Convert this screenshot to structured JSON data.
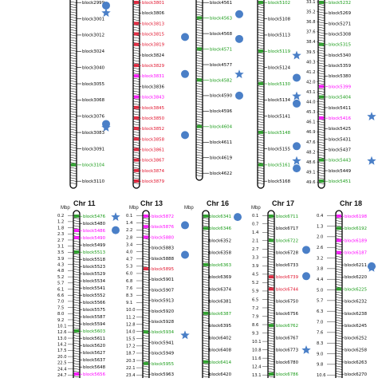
{
  "unit_label": "Mbp",
  "colors": {
    "black": "#000000",
    "red": "#e0102a",
    "magenta": "#ff00ff",
    "green": "#179a16",
    "dot": "#4a7fc7",
    "star": "#4a7fc7"
  },
  "top_panel": {
    "chromosomes": [
      {
        "id": "top-a",
        "labels": [
          {
            "text": "block2999",
            "color": "black"
          },
          {
            "text": "block3001",
            "color": "black"
          },
          {
            "text": "block3012",
            "color": "black"
          },
          {
            "text": "block3024",
            "color": "black"
          },
          {
            "text": "block3040",
            "color": "black"
          },
          {
            "text": "block3055",
            "color": "black"
          },
          {
            "text": "block3068",
            "color": "black"
          },
          {
            "text": "block3076",
            "color": "black"
          },
          {
            "text": "block3083",
            "color": "black"
          },
          {
            "text": "block3091",
            "color": "black"
          },
          {
            "text": "block3104",
            "color": "green"
          },
          {
            "text": "block3110",
            "color": "black"
          }
        ],
        "symbols": [
          {
            "type": "dot",
            "pos": 0.03
          },
          {
            "type": "star",
            "pos": 0.07
          },
          {
            "type": "dot",
            "pos": 0.67
          },
          {
            "type": "star",
            "pos": 0.69
          }
        ]
      },
      {
        "id": "top-b",
        "labels": [
          {
            "text": "block3801",
            "color": "red"
          },
          {
            "text": "block3806",
            "color": "black"
          },
          {
            "text": "block3813",
            "color": "red"
          },
          {
            "text": "block3815",
            "color": "red"
          },
          {
            "text": "block3819",
            "color": "red"
          },
          {
            "text": "block3824",
            "color": "black"
          },
          {
            "text": "block3829",
            "color": "red"
          },
          {
            "text": "block3831",
            "color": "magenta"
          },
          {
            "text": "block3836",
            "color": "black"
          },
          {
            "text": "block3843",
            "color": "magenta"
          },
          {
            "text": "block3845",
            "color": "red"
          },
          {
            "text": "block3850",
            "color": "red"
          },
          {
            "text": "block3852",
            "color": "red"
          },
          {
            "text": "block3858",
            "color": "red"
          },
          {
            "text": "block3861",
            "color": "red"
          },
          {
            "text": "block3867",
            "color": "red"
          },
          {
            "text": "block3874",
            "color": "red"
          },
          {
            "text": "block3879",
            "color": "red"
          }
        ],
        "symbols": [
          {
            "type": "dot",
            "pos": 0.2
          },
          {
            "type": "dot",
            "pos": 0.4
          },
          {
            "type": "dot",
            "pos": 0.73
          }
        ]
      },
      {
        "id": "top-c",
        "labels": [
          {
            "text": "block4561",
            "color": "black"
          },
          {
            "text": "block4563",
            "color": "green"
          },
          {
            "text": "block4568",
            "color": "black"
          },
          {
            "text": "block4571",
            "color": "green"
          },
          {
            "text": "block4577",
            "color": "black"
          },
          {
            "text": "block4582",
            "color": "green"
          },
          {
            "text": "block4590",
            "color": "black"
          },
          {
            "text": "block4596",
            "color": "black"
          },
          {
            "text": "block4604",
            "color": "green"
          },
          {
            "text": "block4611",
            "color": "black"
          },
          {
            "text": "block4619",
            "color": "black"
          },
          {
            "text": "block4622",
            "color": "black"
          }
        ],
        "symbols": [
          {
            "type": "dot",
            "pos": 0.08
          },
          {
            "type": "dot",
            "pos": 0.22
          },
          {
            "type": "star",
            "pos": 0.42
          },
          {
            "type": "dot",
            "pos": 0.54
          }
        ]
      },
      {
        "id": "top-d",
        "labels": [
          {
            "text": "block5102",
            "color": "green"
          },
          {
            "text": "block5108",
            "color": "black"
          },
          {
            "text": "block5113",
            "color": "black"
          },
          {
            "text": "block5119",
            "color": "green"
          },
          {
            "text": "block5124",
            "color": "black"
          },
          {
            "text": "block5130",
            "color": "green"
          },
          {
            "text": "block5134",
            "color": "black"
          },
          {
            "text": "block5141",
            "color": "black"
          },
          {
            "text": "block5148",
            "color": "green"
          },
          {
            "text": "block5155",
            "color": "black"
          },
          {
            "text": "block5161",
            "color": "green"
          },
          {
            "text": "block5168",
            "color": "black"
          }
        ],
        "symbols": [
          {
            "type": "star",
            "pos": 0.3
          },
          {
            "type": "dot",
            "pos": 0.42
          },
          {
            "type": "star",
            "pos": 0.52
          },
          {
            "type": "dot",
            "pos": 0.56
          },
          {
            "type": "dot",
            "pos": 0.79
          },
          {
            "type": "star",
            "pos": 0.87
          },
          {
            "type": "dot",
            "pos": 0.91
          }
        ]
      },
      {
        "id": "top-e",
        "labels": [
          {
            "text": "block5232",
            "color": "green"
          },
          {
            "text": "block5269",
            "color": "black"
          },
          {
            "text": "block5271",
            "color": "black"
          },
          {
            "text": "block5308",
            "color": "black"
          },
          {
            "text": "block5315",
            "color": "green"
          },
          {
            "text": "block5340",
            "color": "black"
          },
          {
            "text": "block5359",
            "color": "black"
          },
          {
            "text": "block5380",
            "color": "black"
          },
          {
            "text": "block5399",
            "color": "magenta"
          },
          {
            "text": "block5404",
            "color": "green"
          },
          {
            "text": "block5411",
            "color": "black"
          },
          {
            "text": "block5416",
            "color": "magenta"
          },
          {
            "text": "block5425",
            "color": "black"
          },
          {
            "text": "block5431",
            "color": "black"
          },
          {
            "text": "block5437",
            "color": "black"
          },
          {
            "text": "block5443",
            "color": "green"
          },
          {
            "text": "block5449",
            "color": "black"
          },
          {
            "text": "block5451",
            "color": "green"
          }
        ],
        "ticks": [
          "33.1",
          "35.2",
          "36.8",
          "37.6",
          "38.4",
          "39.5",
          "40.3",
          "41.2",
          "42.0",
          "43.1",
          "44.0",
          "45.3",
          "46.1",
          "46.9",
          "47.6",
          "48.2",
          "48.6",
          "49.1",
          "49.6"
        ],
        "symbols": [
          {
            "type": "star",
            "pos": 0.63
          },
          {
            "type": "star",
            "pos": 0.87
          }
        ]
      }
    ]
  },
  "bottom_panel": {
    "chromosomes": [
      {
        "id": "chr-11",
        "title": "Chr 11",
        "ticks": [
          "0.2",
          "1.2",
          "1.8",
          "2.3",
          "2.7",
          "3.1",
          "3.5",
          "3.9",
          "4.3",
          "4.8",
          "5.2",
          "5.7",
          "6.1",
          "6.6",
          "7.0",
          "7.5",
          "8.0",
          "9.2",
          "10.1",
          "12.6",
          "13.0",
          "14.2",
          "17.5",
          "20.0",
          "22.5",
          "24.4",
          "24.7"
        ],
        "labels": [
          {
            "text": "block5476",
            "color": "green"
          },
          {
            "text": "block5480",
            "color": "black"
          },
          {
            "text": "block5486",
            "color": "magenta"
          },
          {
            "text": "block5490",
            "color": "magenta"
          },
          {
            "text": "block5499",
            "color": "black"
          },
          {
            "text": "block5513",
            "color": "green"
          },
          {
            "text": "block5518",
            "color": "black"
          },
          {
            "text": "block5523",
            "color": "black"
          },
          {
            "text": "block5529",
            "color": "black"
          },
          {
            "text": "block5534",
            "color": "black"
          },
          {
            "text": "block5541",
            "color": "black"
          },
          {
            "text": "block5552",
            "color": "black"
          },
          {
            "text": "block5566",
            "color": "black"
          },
          {
            "text": "block5575",
            "color": "black"
          },
          {
            "text": "block5587",
            "color": "black"
          },
          {
            "text": "block5594",
            "color": "black"
          },
          {
            "text": "block5603",
            "color": "green"
          },
          {
            "text": "block5611",
            "color": "black"
          },
          {
            "text": "block5620",
            "color": "black"
          },
          {
            "text": "block5627",
            "color": "black"
          },
          {
            "text": "block5637",
            "color": "black"
          },
          {
            "text": "block5648",
            "color": "black"
          },
          {
            "text": "block5656",
            "color": "magenta"
          }
        ],
        "symbols": [
          {
            "type": "star",
            "pos": 0.02
          },
          {
            "type": "dot",
            "pos": 0.1
          }
        ]
      },
      {
        "id": "chr-13",
        "title": "Chr 13",
        "ticks": [
          "0.1",
          "1.4",
          "2.2",
          "2.8",
          "3.4",
          "4.0",
          "4.7",
          "5.3",
          "6.0",
          "6.8",
          "7.6",
          "8.3",
          "9.1",
          "10.0",
          "11.2",
          "12.8",
          "14.0",
          "15.5",
          "17.2",
          "18.7",
          "20.3",
          "22.1",
          "23.4"
        ],
        "labels": [
          {
            "text": "block5872",
            "color": "magenta"
          },
          {
            "text": "block5876",
            "color": "magenta"
          },
          {
            "text": "block5880",
            "color": "magenta"
          },
          {
            "text": "block5883",
            "color": "black"
          },
          {
            "text": "block5888",
            "color": "black"
          },
          {
            "text": "block5895",
            "color": "red"
          },
          {
            "text": "block5901",
            "color": "black"
          },
          {
            "text": "block5907",
            "color": "black"
          },
          {
            "text": "block5913",
            "color": "black"
          },
          {
            "text": "block5920",
            "color": "black"
          },
          {
            "text": "block5928",
            "color": "black"
          },
          {
            "text": "block5934",
            "color": "green"
          },
          {
            "text": "block5941",
            "color": "black"
          },
          {
            "text": "block5949",
            "color": "black"
          },
          {
            "text": "block5955",
            "color": "green"
          },
          {
            "text": "block5963",
            "color": "black"
          }
        ],
        "symbols": [
          {
            "type": "dot",
            "pos": 0.07
          },
          {
            "type": "dot",
            "pos": 0.25
          },
          {
            "type": "star",
            "pos": 0.74
          }
        ]
      },
      {
        "id": "chr-16",
        "title": "Chr 16",
        "ticks": [],
        "labels": [
          {
            "text": "block6341",
            "color": "green"
          },
          {
            "text": "block6346",
            "color": "green"
          },
          {
            "text": "block6352",
            "color": "black"
          },
          {
            "text": "block6358",
            "color": "black"
          },
          {
            "text": "block6363",
            "color": "green"
          },
          {
            "text": "block6369",
            "color": "black"
          },
          {
            "text": "block6374",
            "color": "black"
          },
          {
            "text": "block6381",
            "color": "black"
          },
          {
            "text": "block6387",
            "color": "green"
          },
          {
            "text": "block6395",
            "color": "black"
          },
          {
            "text": "block6402",
            "color": "black"
          },
          {
            "text": "block6408",
            "color": "black"
          },
          {
            "text": "block6414",
            "color": "green"
          },
          {
            "text": "block6420",
            "color": "black"
          }
        ],
        "symbols": [
          {
            "type": "dot",
            "pos": 0.02
          }
        ]
      },
      {
        "id": "chr-17",
        "title": "Chr 17",
        "ticks": [
          "0.1",
          "0.7",
          "1.4",
          "2.1",
          "2.7",
          "3.3",
          "3.9",
          "4.5",
          "5.2",
          "5.9",
          "6.5",
          "7.2",
          "7.9",
          "8.6",
          "9.3",
          "10.1",
          "10.8",
          "11.6",
          "12.4",
          "13.1"
        ],
        "labels": [
          {
            "text": "block6711",
            "color": "green"
          },
          {
            "text": "block6717",
            "color": "black"
          },
          {
            "text": "block6722",
            "color": "green"
          },
          {
            "text": "block6728",
            "color": "black"
          },
          {
            "text": "block6733",
            "color": "black"
          },
          {
            "text": "block6739",
            "color": "red"
          },
          {
            "text": "block6744",
            "color": "red"
          },
          {
            "text": "block6750",
            "color": "black"
          },
          {
            "text": "block6756",
            "color": "black"
          },
          {
            "text": "block6762",
            "color": "green"
          },
          {
            "text": "block6767",
            "color": "black"
          },
          {
            "text": "block6773",
            "color": "black"
          },
          {
            "text": "block6780",
            "color": "black"
          },
          {
            "text": "block6786",
            "color": "green"
          }
        ],
        "symbols": [
          {
            "type": "dot",
            "pos": 0.22
          },
          {
            "type": "dot",
            "pos": 0.38
          },
          {
            "type": "star",
            "pos": 0.83
          }
        ]
      },
      {
        "id": "chr-18",
        "title": "Chr 18",
        "ticks": [
          "0.4",
          "1.3",
          "2.0",
          "2.6",
          "3.2",
          "3.8",
          "4.4",
          "5.0",
          "5.7",
          "6.3",
          "7.0",
          "7.6",
          "8.3",
          "9.0",
          "9.8",
          "10.6"
        ],
        "labels": [
          {
            "text": "block6198",
            "color": "magenta"
          },
          {
            "text": "block6192",
            "color": "green"
          },
          {
            "text": "block6189",
            "color": "magenta"
          },
          {
            "text": "block6187",
            "color": "magenta"
          },
          {
            "text": "block6211",
            "color": "black"
          },
          {
            "text": "block6220",
            "color": "black"
          },
          {
            "text": "block6225",
            "color": "green"
          },
          {
            "text": "block6232",
            "color": "black"
          },
          {
            "text": "block6238",
            "color": "black"
          },
          {
            "text": "block6245",
            "color": "black"
          },
          {
            "text": "block6252",
            "color": "black"
          },
          {
            "text": "block6258",
            "color": "black"
          },
          {
            "text": "block6263",
            "color": "black"
          },
          {
            "text": "block6270",
            "color": "black"
          }
        ],
        "symbols": [
          {
            "type": "dot",
            "pos": 0.32
          },
          {
            "type": "star",
            "pos": 0.33
          }
        ]
      }
    ]
  }
}
